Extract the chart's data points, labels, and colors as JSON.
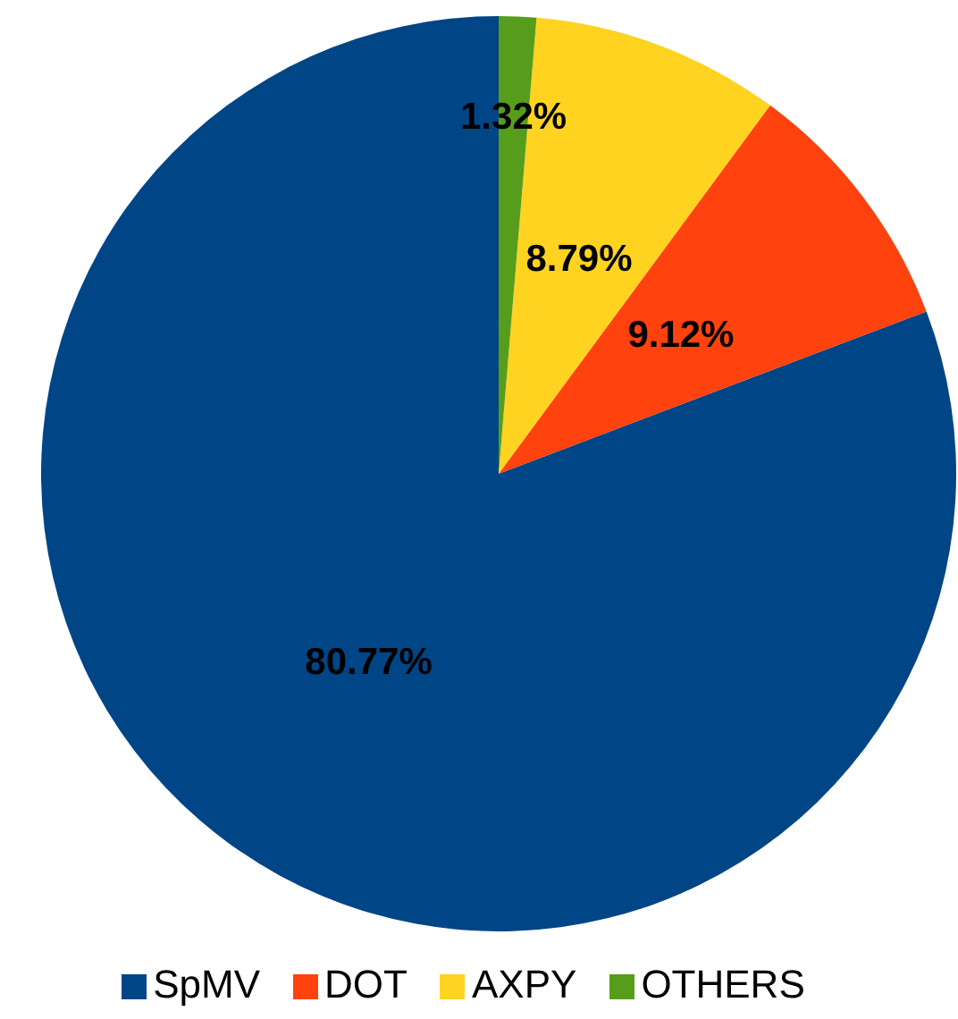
{
  "chart_data": {
    "type": "pie",
    "categories": [
      "SpMV",
      "DOT",
      "AXPY",
      "OTHERS"
    ],
    "values": [
      80.77,
      9.12,
      8.79,
      1.32
    ],
    "value_labels": [
      "80.77%",
      "9.12%",
      "8.79%",
      "1.32%"
    ],
    "colors": [
      "#004586",
      "#ff420e",
      "#ffd320",
      "#579d1c"
    ],
    "legend": "bottom"
  }
}
